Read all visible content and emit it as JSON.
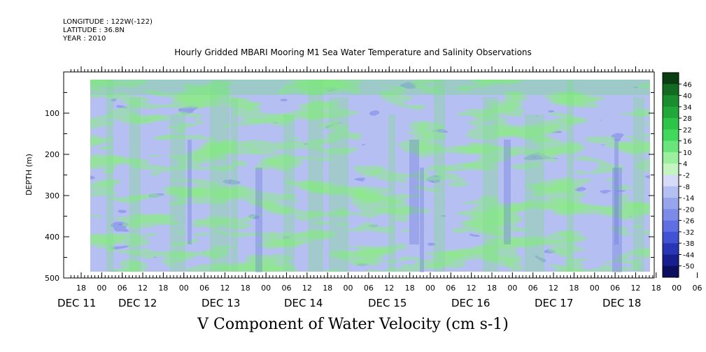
{
  "header": {
    "longitude": "LONGITUDE : 122W(-122)",
    "latitude": "LATITUDE : 36.8N",
    "year": "YEAR : 2010"
  },
  "chart_data": {
    "type": "heatmap",
    "title": "Hourly Gridded MBARI Mooring M1 Sea Water Temperature and Salinity Observations",
    "xlabel": "V Component of Water Velocity (cm s-1)",
    "ylabel": "DEPTH (m)",
    "ylim": [
      500,
      0
    ],
    "y_ticks": [
      100,
      200,
      300,
      400,
      500
    ],
    "x_hour_labels": [
      "18",
      "00",
      "06",
      "12",
      "18",
      "00",
      "06",
      "12",
      "18",
      "00",
      "06",
      "12",
      "18",
      "00",
      "06",
      "12",
      "18",
      "00",
      "06",
      "12",
      "18",
      "00",
      "06",
      "12",
      "18",
      "00",
      "06",
      "12",
      "18",
      "00",
      "06",
      "12"
    ],
    "x_day_labels": [
      "DEC 11",
      "DEC 12",
      "DEC 13",
      "DEC 14",
      "DEC 15",
      "DEC 16",
      "DEC 17",
      "DEC 18"
    ],
    "colorbar_labels": [
      "46",
      "40",
      "34",
      "28",
      "22",
      "16",
      "10",
      "4",
      "-2",
      "-8",
      "-14",
      "-20",
      "-26",
      "-32",
      "-38",
      "-44",
      "-50"
    ],
    "colorbar_colors": [
      "#0b3d12",
      "#126b21",
      "#1a8e2e",
      "#22a83a",
      "#2dc44a",
      "#42d85c",
      "#6ae57c",
      "#9cef9f",
      "#c4f5c0",
      "#d6dcf7",
      "#b5c0f2",
      "#97a5ed",
      "#7c8ae8",
      "#5f6fe2",
      "#4152d4",
      "#2836b6",
      "#171f8f",
      "#0b0f5e"
    ]
  }
}
